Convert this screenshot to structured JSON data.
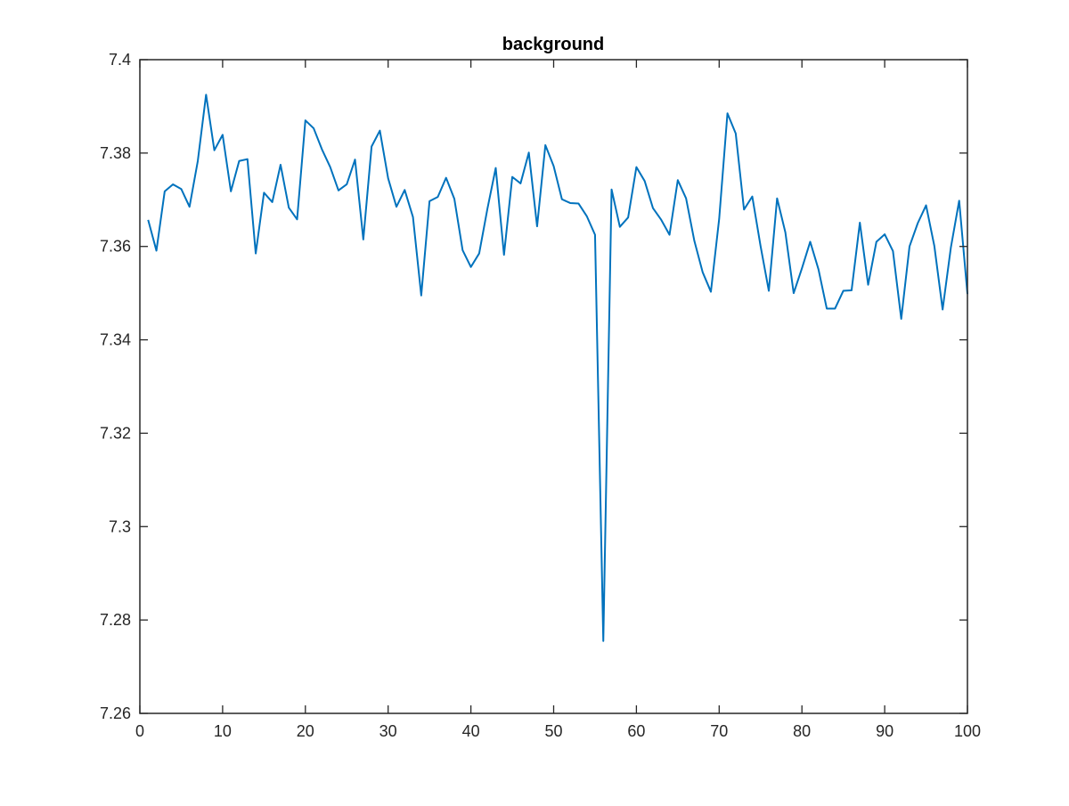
{
  "chart_data": {
    "type": "line",
    "title": "background",
    "xlabel": "",
    "ylabel": "",
    "xlim": [
      0,
      100
    ],
    "ylim": [
      7.26,
      7.4
    ],
    "xticks": [
      0,
      10,
      20,
      30,
      40,
      50,
      60,
      70,
      80,
      90,
      100
    ],
    "xtick_labels": [
      "0",
      "10",
      "20",
      "30",
      "40",
      "50",
      "60",
      "70",
      "80",
      "90",
      "100"
    ],
    "yticks": [
      7.26,
      7.28,
      7.3,
      7.32,
      7.34,
      7.36,
      7.38,
      7.4
    ],
    "ytick_labels": [
      "7.26",
      "7.28",
      "7.3",
      "7.32",
      "7.34",
      "7.36",
      "7.38",
      "7.4"
    ],
    "grid": false,
    "box": true,
    "line_color": "#0072bd",
    "axis_color": "#262626",
    "series": [
      {
        "x": [
          1,
          2,
          3,
          4,
          5,
          6,
          7,
          8,
          9,
          10,
          11,
          12,
          13,
          14,
          15,
          16,
          17,
          18,
          19,
          20,
          21,
          22,
          23,
          24,
          25,
          26,
          27,
          28,
          29,
          30,
          31,
          32,
          33,
          34,
          35,
          36,
          37,
          38,
          39,
          40,
          41,
          42,
          43,
          44,
          45,
          46,
          47,
          48,
          49,
          50,
          51,
          52,
          53,
          54,
          55,
          56,
          57,
          58,
          59,
          60,
          61,
          62,
          63,
          64,
          65,
          66,
          67,
          68,
          69,
          70,
          71,
          72,
          73,
          74,
          75,
          76,
          77,
          78,
          79,
          80,
          81,
          82,
          83,
          84,
          85,
          86,
          87,
          88,
          89,
          90,
          91,
          92,
          93,
          94,
          95,
          96,
          97,
          98,
          99,
          100
        ],
        "values": [
          7.3657,
          7.3591,
          7.3718,
          7.3733,
          7.3723,
          7.3685,
          7.3783,
          7.3925,
          7.3806,
          7.3839,
          7.3718,
          7.3783,
          7.3787,
          7.3585,
          7.3715,
          7.3695,
          7.3775,
          7.3683,
          7.3658,
          7.387,
          7.3853,
          7.3808,
          7.377,
          7.372,
          7.3733,
          7.3786,
          7.3615,
          7.3814,
          7.3848,
          7.3746,
          7.3685,
          7.3721,
          7.3663,
          7.3495,
          7.3697,
          7.3706,
          7.3747,
          7.3702,
          7.3592,
          7.3556,
          7.3585,
          7.3681,
          7.3768,
          7.3582,
          7.3749,
          7.3735,
          7.3801,
          7.3643,
          7.3817,
          7.3772,
          7.3701,
          7.3693,
          7.3692,
          7.3665,
          7.3625,
          7.2755,
          7.3722,
          7.3642,
          7.3662,
          7.377,
          7.374,
          7.3682,
          7.3657,
          7.3625,
          7.3742,
          7.3703,
          7.3612,
          7.3545,
          7.3503,
          7.3659,
          7.3885,
          7.3842,
          7.3679,
          7.3707,
          7.3601,
          7.3505,
          7.3703,
          7.363,
          7.35,
          7.3553,
          7.361,
          7.3551,
          7.3467,
          7.3467,
          7.3505,
          7.3506,
          7.3651,
          7.3518,
          7.361,
          7.3626,
          7.359,
          7.3445,
          7.36,
          7.365,
          7.3688,
          7.3601,
          7.3465,
          7.3598,
          7.3698,
          7.3498
        ]
      }
    ]
  }
}
